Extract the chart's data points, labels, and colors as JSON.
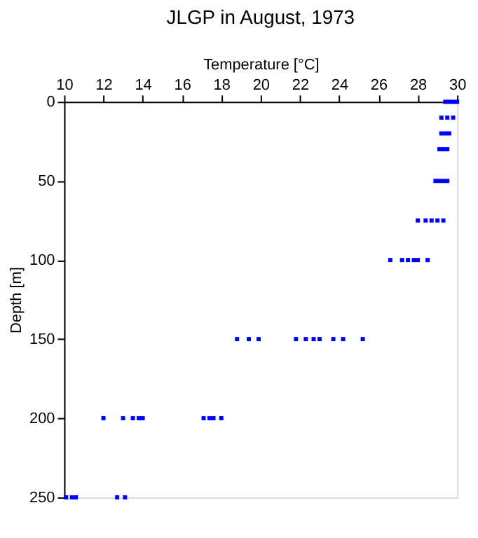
{
  "chart_data": {
    "type": "scatter",
    "title": "JLGP in August, 1973",
    "xlabel": "Temperature [°C]",
    "ylabel": "Depth [m]",
    "x": [
      29.4,
      29.6,
      29.8,
      30.0,
      29.2,
      29.5,
      29.8,
      29.2,
      29.4,
      29.6,
      29.1,
      29.3,
      29.5,
      28.9,
      29.1,
      29.3,
      29.5,
      28.0,
      28.4,
      28.7,
      29.0,
      29.3,
      26.6,
      27.2,
      27.5,
      27.8,
      28.0,
      28.5,
      18.8,
      19.4,
      19.9,
      21.8,
      22.3,
      22.7,
      23.0,
      23.7,
      24.2,
      25.2,
      12.0,
      13.0,
      13.5,
      13.8,
      14.0,
      17.1,
      17.4,
      17.6,
      18.0,
      10.1,
      10.4,
      10.6,
      12.7,
      13.1
    ],
    "values": [
      0,
      0,
      0,
      0,
      10,
      10,
      10,
      20,
      20,
      20,
      30,
      30,
      30,
      50,
      50,
      50,
      50,
      75,
      75,
      75,
      75,
      75,
      100,
      100,
      100,
      100,
      100,
      100,
      150,
      150,
      150,
      150,
      150,
      150,
      150,
      150,
      150,
      150,
      200,
      200,
      200,
      200,
      200,
      200,
      200,
      200,
      200,
      250,
      250,
      250,
      250,
      250
    ],
    "color": "#0000ff",
    "marker": "square",
    "xlim": [
      10,
      30
    ],
    "xticks": [
      10,
      12,
      14,
      16,
      18,
      20,
      22,
      24,
      26,
      28,
      30
    ],
    "ylim": [
      250,
      0
    ],
    "yticks": [
      0,
      50,
      100,
      150,
      200,
      250
    ],
    "grid": false
  }
}
